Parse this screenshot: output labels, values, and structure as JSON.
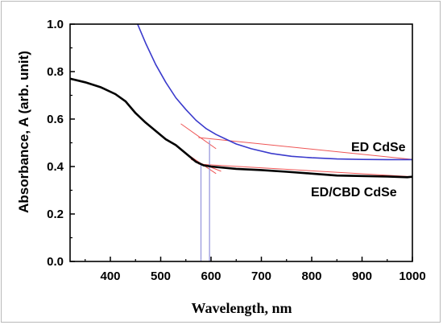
{
  "chart_data": {
    "type": "line",
    "xlabel": "Wavelength, nm",
    "ylabel": "Absorbance, A (arb. unit)",
    "xlim": [
      320,
      1000
    ],
    "ylim": [
      0.0,
      1.0
    ],
    "xticks": [
      400,
      500,
      600,
      700,
      800,
      900,
      1000
    ],
    "yticks": [
      "0.0",
      "0.2",
      "0.4",
      "0.6",
      "0.8",
      "1.0"
    ],
    "grid": false,
    "series": [
      {
        "name": "ED CdSe",
        "color": "#3a3acc",
        "points": [
          [
            454,
            1.0
          ],
          [
            470,
            0.92
          ],
          [
            490,
            0.83
          ],
          [
            510,
            0.755
          ],
          [
            530,
            0.69
          ],
          [
            550,
            0.64
          ],
          [
            570,
            0.595
          ],
          [
            590,
            0.56
          ],
          [
            610,
            0.535
          ],
          [
            630,
            0.515
          ],
          [
            650,
            0.495
          ],
          [
            680,
            0.475
          ],
          [
            720,
            0.455
          ],
          [
            760,
            0.443
          ],
          [
            800,
            0.437
          ],
          [
            850,
            0.432
          ],
          [
            900,
            0.43
          ],
          [
            950,
            0.429
          ],
          [
            1000,
            0.429
          ]
        ]
      },
      {
        "name": "ED/CBD CdSe",
        "color": "#000000",
        "points": [
          [
            320,
            0.77
          ],
          [
            350,
            0.755
          ],
          [
            380,
            0.735
          ],
          [
            410,
            0.705
          ],
          [
            430,
            0.675
          ],
          [
            450,
            0.625
          ],
          [
            470,
            0.585
          ],
          [
            490,
            0.55
          ],
          [
            510,
            0.515
          ],
          [
            530,
            0.49
          ],
          [
            550,
            0.455
          ],
          [
            570,
            0.42
          ],
          [
            585,
            0.405
          ],
          [
            600,
            0.4
          ],
          [
            650,
            0.39
          ],
          [
            700,
            0.385
          ],
          [
            750,
            0.378
          ],
          [
            800,
            0.37
          ],
          [
            850,
            0.362
          ],
          [
            900,
            0.36
          ],
          [
            950,
            0.358
          ],
          [
            990,
            0.355
          ],
          [
            1000,
            0.357
          ]
        ]
      }
    ],
    "fit_lines": [
      {
        "color": "#ee5555",
        "points": [
          [
            560,
            0.43
          ],
          [
            620,
            0.38
          ]
        ]
      },
      {
        "color": "#ee5555",
        "points": [
          [
            540,
            0.47
          ],
          [
            610,
            0.37
          ]
        ]
      },
      {
        "color": "#ee5555",
        "points": [
          [
            540,
            0.58
          ],
          [
            610,
            0.475
          ]
        ]
      },
      {
        "color": "#ee5555",
        "points": [
          [
            575,
            0.522
          ],
          [
            1000,
            0.43
          ]
        ]
      },
      {
        "color": "#ee5555",
        "points": [
          [
            575,
            0.41
          ],
          [
            1000,
            0.357
          ]
        ]
      }
    ],
    "markers": [
      {
        "x": 580,
        "y_top": 0.41,
        "color": "#9999dd"
      },
      {
        "x": 597,
        "y_top": 0.51,
        "color": "#9999dd"
      }
    ]
  }
}
